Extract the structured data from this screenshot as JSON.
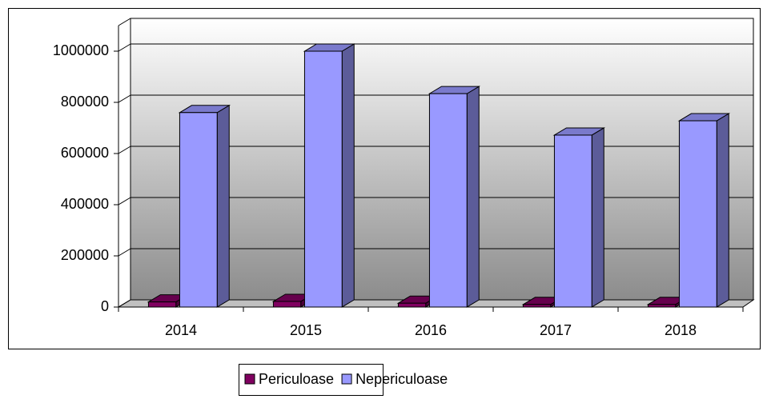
{
  "chart_data": {
    "type": "bar3d",
    "categories": [
      "2014",
      "2015",
      "2016",
      "2017",
      "2018"
    ],
    "series": [
      {
        "name": "Periculoase",
        "color": "#800060",
        "values": [
          20000,
          22000,
          15000,
          10000,
          10000
        ]
      },
      {
        "name": "Nepericuloase",
        "color": "#9999ff",
        "values": [
          760000,
          1000000,
          834000,
          672000,
          728000
        ]
      }
    ],
    "ylim": [
      0,
      1100000
    ],
    "yticks": [
      0,
      200000,
      400000,
      600000,
      800000,
      1000000
    ],
    "grid": true,
    "legend": "bottom"
  }
}
